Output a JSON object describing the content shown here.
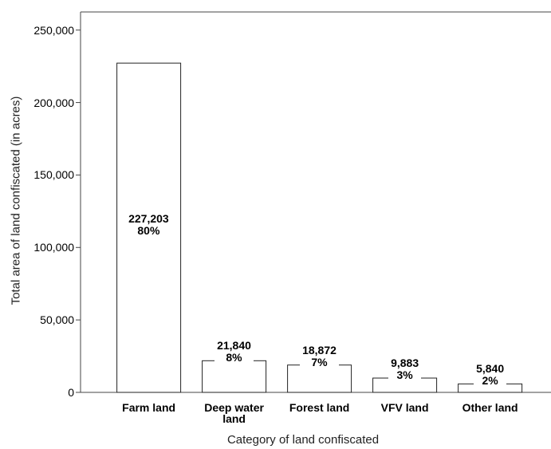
{
  "chart_data": {
    "type": "bar",
    "x_label": "Category of land confiscated",
    "y_label": "Total area of land confiscated (in acres)",
    "categories": [
      "Farm land",
      "Deep water land",
      "Forest land",
      "VFV land",
      "Other land"
    ],
    "values": [
      227203,
      21840,
      18872,
      9883,
      5840
    ],
    "value_labels": [
      "227,203",
      "21,840",
      "18,872",
      "9,883",
      "5,840"
    ],
    "shares": [
      "80%",
      "8%",
      "7%",
      "3%",
      "2%"
    ],
    "color": "#ffffff",
    "ylim": [
      0,
      262500
    ],
    "yticks": [
      0,
      {
        "value": 50000,
        "label": "50,000"
      },
      {
        "value": 100000,
        "label": "100,000"
      },
      {
        "value": 150000,
        "label": "150,000"
      },
      {
        "value": 200000,
        "label": "200,000"
      },
      {
        "value": 250000,
        "label": "250,000"
      }
    ],
    "grid": false
  }
}
